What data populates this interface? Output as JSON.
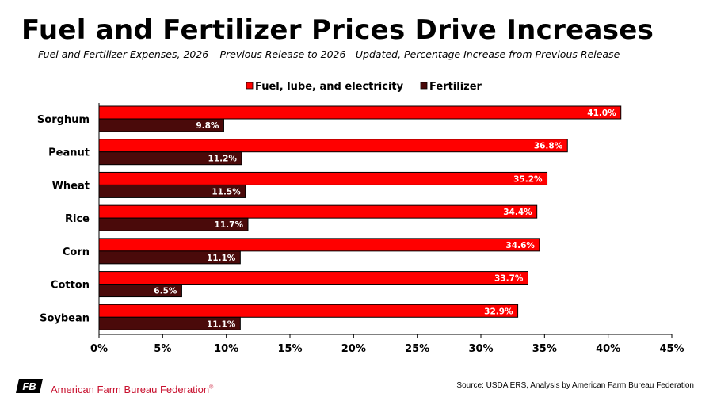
{
  "header": {
    "title": "Fuel and Fertilizer Prices Drive Increases",
    "subtitle": "Fuel and Fertilizer Expenses, 2026 – Previous Release to 2026 - Updated, Percentage Increase from Previous Release"
  },
  "footer": {
    "source": "Source: USDA ERS, Analysis by American Farm Bureau Federation",
    "org_name": "American Farm Bureau Federation",
    "logo_text": "FB"
  },
  "chart_data": {
    "type": "bar",
    "orientation": "horizontal",
    "categories": [
      "Sorghum",
      "Peanut",
      "Wheat",
      "Rice",
      "Corn",
      "Cotton",
      "Soybean"
    ],
    "series": [
      {
        "name": "Fuel, lube, and electricity",
        "color": "#ff0000",
        "values": [
          41.0,
          36.8,
          35.2,
          34.4,
          34.6,
          33.7,
          32.9
        ]
      },
      {
        "name": "Fertilizer",
        "color": "#4a0a0a",
        "values": [
          9.8,
          11.2,
          11.5,
          11.7,
          11.1,
          6.5,
          11.1
        ]
      }
    ],
    "xlim": [
      0,
      45
    ],
    "xticks": [
      0,
      5,
      10,
      15,
      20,
      25,
      30,
      35,
      40,
      45
    ],
    "tick_format": "percent",
    "data_label_format": "one-decimal-percent",
    "grid": false,
    "legend_position": "top"
  }
}
